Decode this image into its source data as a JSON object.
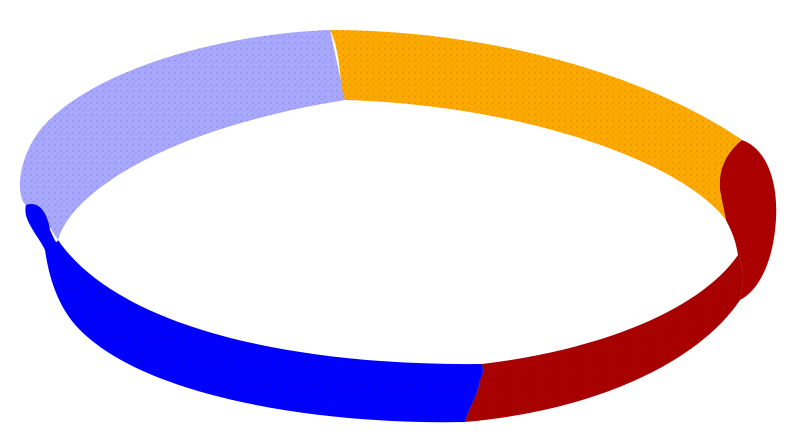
{
  "figure": {
    "kind": "point-cloud-band-ring",
    "background": "#ffffff",
    "segments": [
      {
        "id": "upper-left",
        "color": "#a8a8ff"
      },
      {
        "id": "upper-right",
        "color": "#ffaa00"
      },
      {
        "id": "right",
        "color": "#aa0000"
      },
      {
        "id": "bottom-right",
        "color": "#aa0000"
      },
      {
        "id": "bottom-left",
        "color": "#0000ff"
      }
    ],
    "speckle_color": "#1a1a40"
  }
}
